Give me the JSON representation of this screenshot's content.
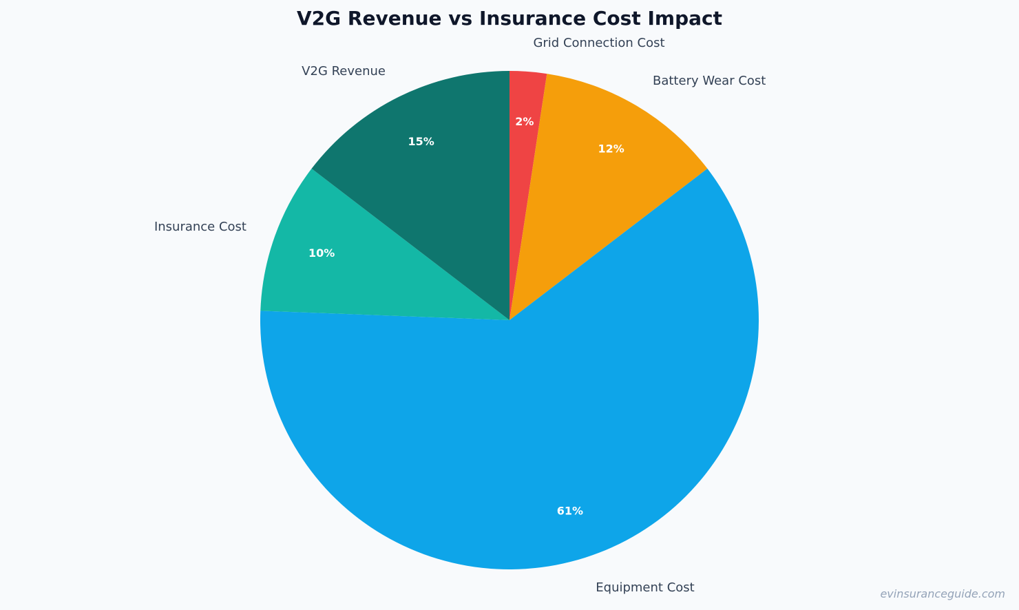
{
  "chart_data": {
    "type": "pie",
    "title": "V2G Revenue vs Insurance Cost Impact",
    "start": "top",
    "direction": "clockwise",
    "slices": [
      {
        "label": "Grid Connection Cost",
        "value": 2.4,
        "display": "2%",
        "color": "#ef4444"
      },
      {
        "label": "Battery Wear Cost",
        "value": 12.2,
        "display": "12%",
        "color": "#f59e0b"
      },
      {
        "label": "Equipment Cost",
        "value": 61.0,
        "display": "61%",
        "color": "#0ea5e9"
      },
      {
        "label": "Insurance Cost",
        "value": 9.8,
        "display": "10%",
        "color": "#14b8a6"
      },
      {
        "label": "V2G Revenue",
        "value": 14.6,
        "display": "15%",
        "color": "#0f766e"
      }
    ],
    "legend": "none"
  },
  "watermark": "evinsuranceguide.com"
}
